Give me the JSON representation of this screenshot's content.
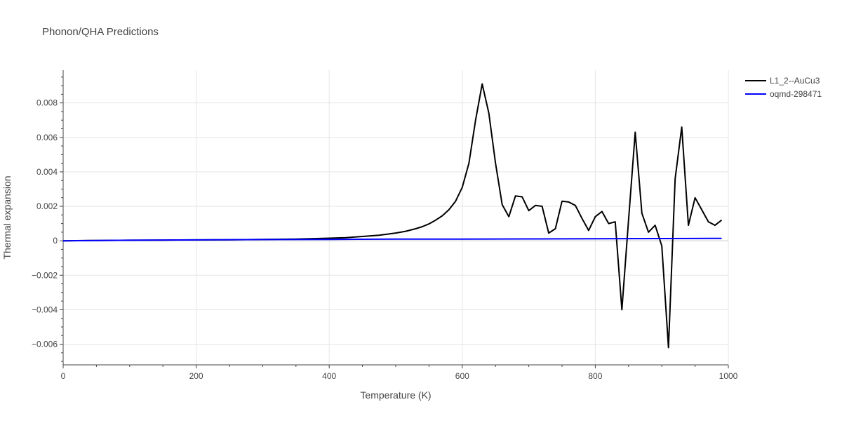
{
  "chart_data": {
    "type": "line",
    "title": "Phonon/QHA Predictions",
    "xlabel": "Temperature (K)",
    "ylabel": "Thermal expansion",
    "xlim": [
      0,
      1000
    ],
    "ylim": [
      -0.0072,
      0.0099
    ],
    "x_ticks": [
      0,
      200,
      400,
      600,
      800,
      1000
    ],
    "x_tick_labels": [
      "0",
      "200",
      "400",
      "600",
      "800",
      "1000"
    ],
    "y_ticks": [
      -0.006,
      -0.004,
      -0.002,
      0,
      0.002,
      0.004,
      0.006,
      0.008
    ],
    "y_tick_labels": [
      "−0.006",
      "−0.004",
      "−0.002",
      "0",
      "0.002",
      "0.004",
      "0.006",
      "0.008"
    ],
    "grid": true,
    "legend_position": "top-right",
    "series": [
      {
        "name": "L1_2--AuCu3",
        "color": "#000000",
        "x": [
          0,
          50,
          100,
          150,
          200,
          250,
          300,
          350,
          400,
          425,
          450,
          475,
          500,
          515,
          530,
          540,
          550,
          560,
          570,
          580,
          590,
          600,
          610,
          620,
          630,
          640,
          650,
          660,
          670,
          680,
          690,
          700,
          710,
          720,
          730,
          740,
          750,
          760,
          770,
          780,
          790,
          800,
          810,
          820,
          830,
          840,
          850,
          860,
          870,
          880,
          890,
          900,
          910,
          920,
          930,
          940,
          950,
          960,
          970,
          980,
          990
        ],
        "y": [
          0,
          2e-05,
          3e-05,
          4e-05,
          5e-05,
          6e-05,
          8e-05,
          0.0001,
          0.00015,
          0.00018,
          0.00025,
          0.00032,
          0.00045,
          0.00055,
          0.0007,
          0.00082,
          0.00098,
          0.0012,
          0.00145,
          0.0018,
          0.0023,
          0.0031,
          0.0045,
          0.007,
          0.0091,
          0.0074,
          0.0045,
          0.0021,
          0.0014,
          0.0026,
          0.00255,
          0.00175,
          0.00205,
          0.002,
          0.00045,
          0.0007,
          0.0023,
          0.00225,
          0.00205,
          0.0013,
          0.0006,
          0.0014,
          0.0017,
          0.001,
          0.0011,
          -0.004,
          0.0012,
          0.0063,
          0.0016,
          0.0005,
          0.0009,
          -0.0003,
          -0.0062,
          0.0036,
          0.0066,
          0.0009,
          0.0025,
          0.0018,
          0.0011,
          0.0009,
          0.0012
        ]
      },
      {
        "name": "oqmd-298471",
        "color": "#0000ff",
        "x": [
          0,
          100,
          200,
          300,
          400,
          500,
          600,
          700,
          800,
          900,
          990
        ],
        "y": [
          0,
          3e-05,
          5e-05,
          7e-05,
          8e-05,
          0.0001,
          0.0001,
          0.00011,
          0.00012,
          0.00013,
          0.00014
        ]
      }
    ]
  }
}
